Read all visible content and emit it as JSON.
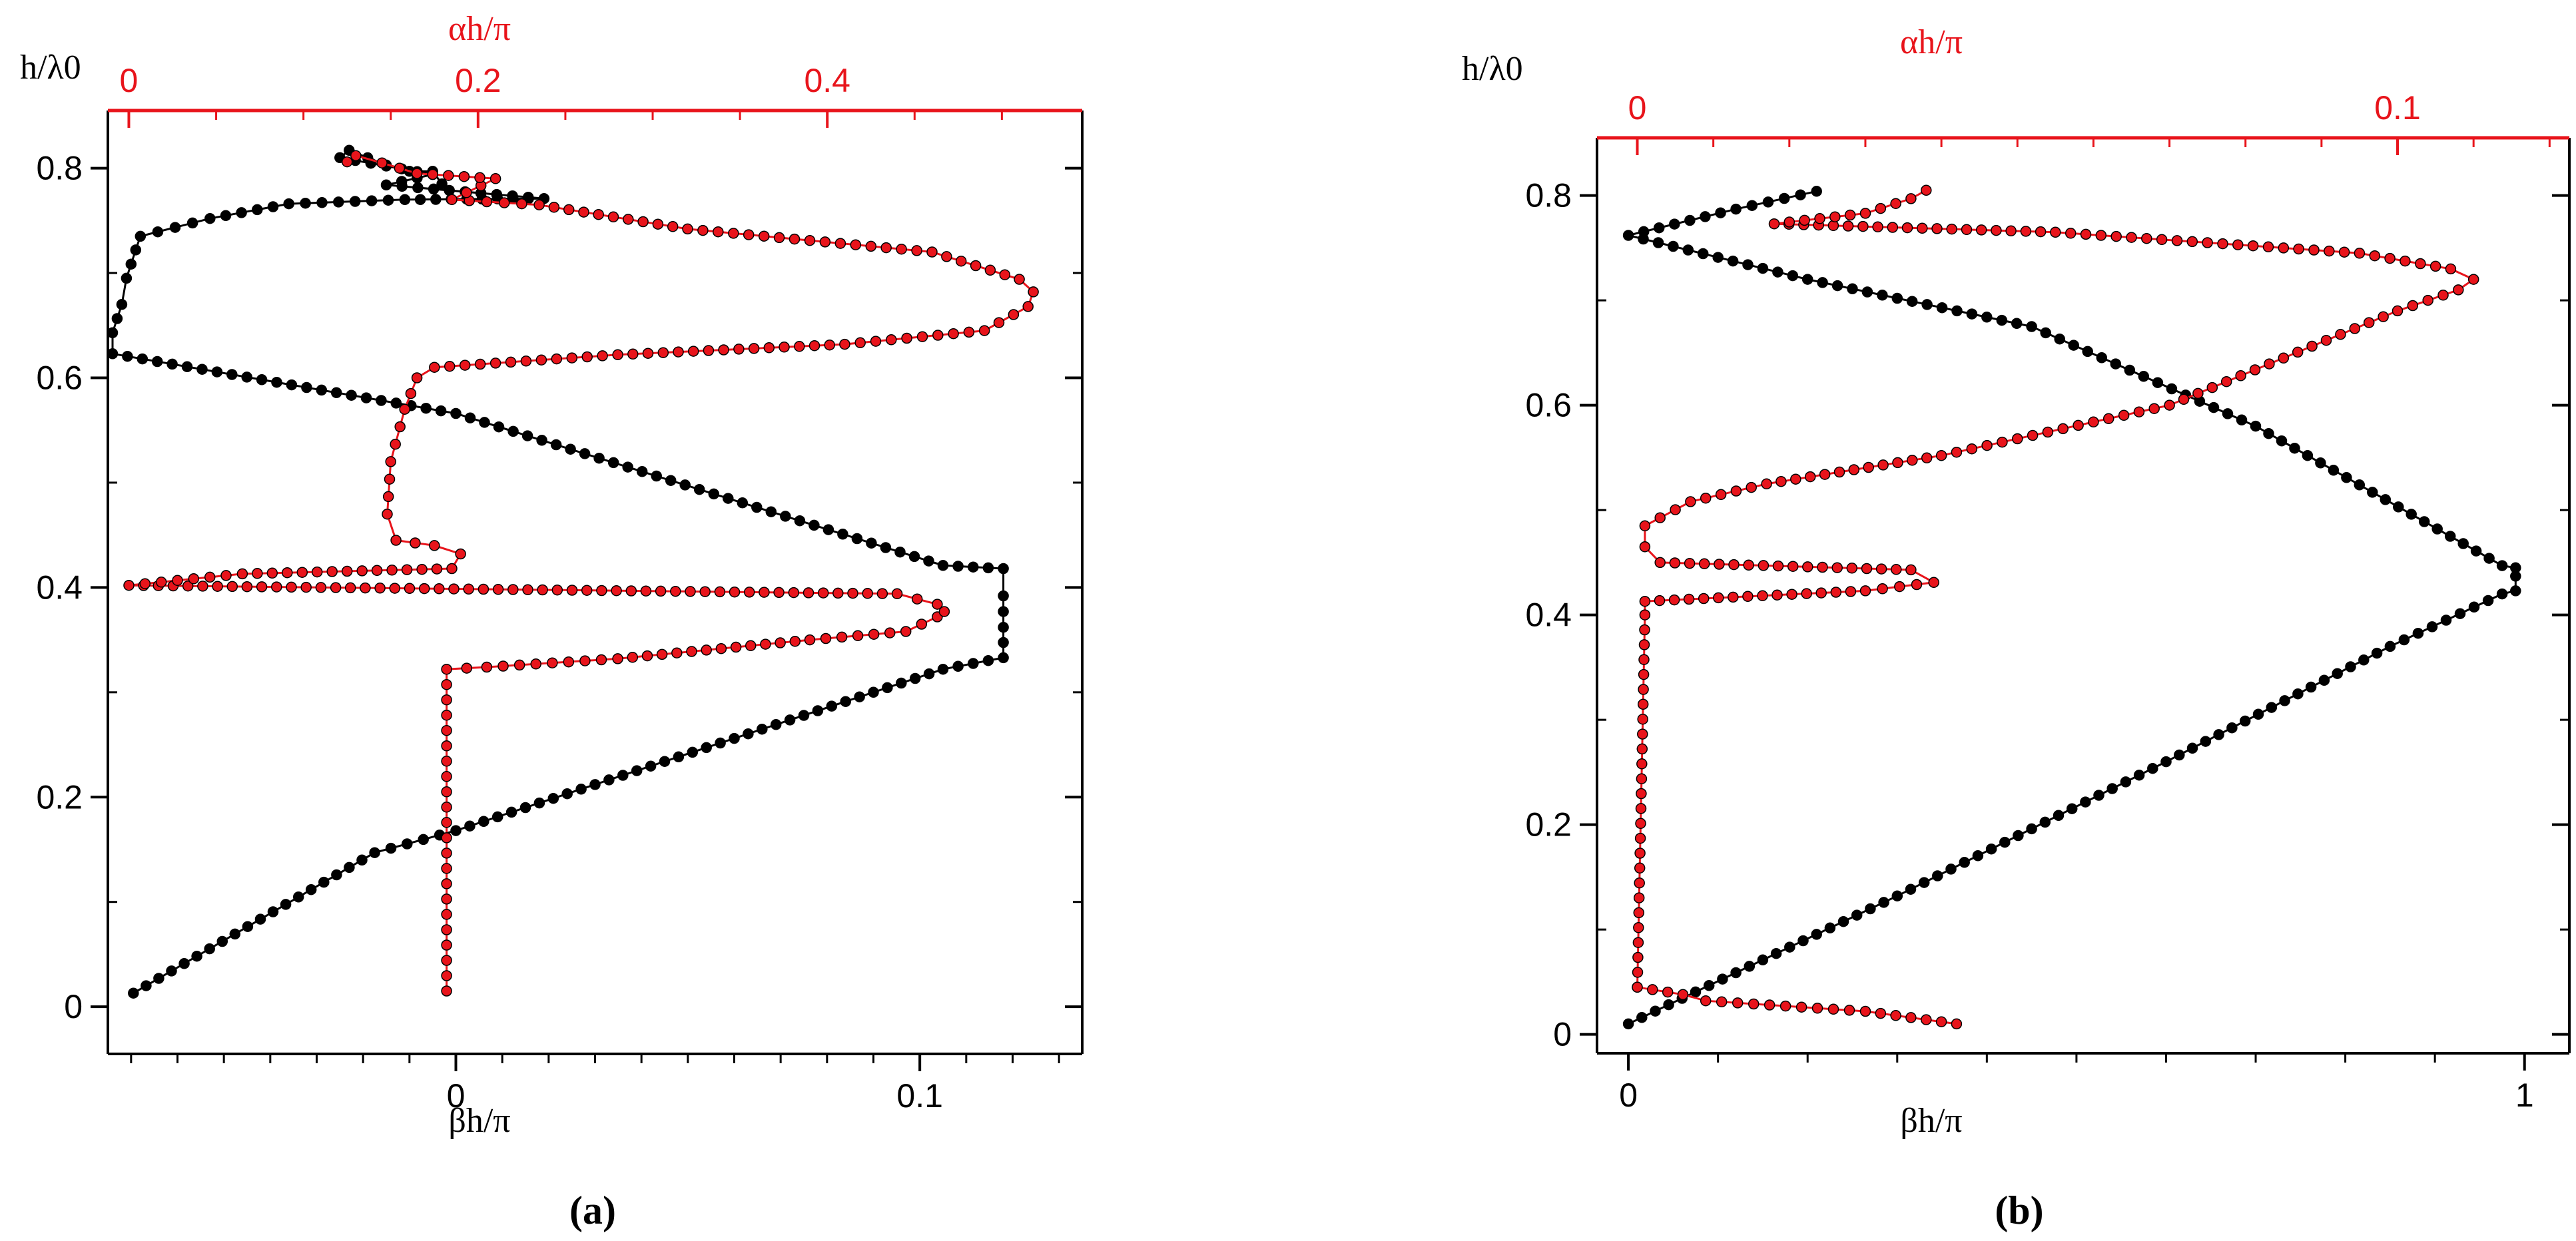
{
  "colors": {
    "primary": "#000000",
    "secondary": "#e8141b"
  },
  "chart_data": [
    {
      "type": "line",
      "panel_label": "(a)",
      "ylabel": "h/λ0",
      "xlabel": "βh/π",
      "x2label": "αh/π",
      "xlim": [
        -0.075,
        0.135
      ],
      "x2lim": [
        -0.012,
        0.546
      ],
      "ylim": [
        -0.045,
        0.855
      ],
      "x_ticks": [
        0,
        0.1
      ],
      "x_tick_labels": [
        "0",
        "0.1"
      ],
      "x_minor_ticks": [
        -0.07,
        -0.06,
        -0.05,
        -0.04,
        -0.03,
        -0.02,
        -0.01,
        0.01,
        0.02,
        0.03,
        0.04,
        0.05,
        0.06,
        0.07,
        0.08,
        0.09,
        0.11,
        0.12,
        0.13
      ],
      "x2_ticks": [
        0,
        0.2,
        0.4
      ],
      "x2_tick_labels": [
        "0",
        "0.2",
        "0.4"
      ],
      "x2_minor_ticks": [
        0.05,
        0.1,
        0.15,
        0.25,
        0.3,
        0.35,
        0.45,
        0.5
      ],
      "y_ticks": [
        0,
        0.2,
        0.4,
        0.6,
        0.8
      ],
      "y_tick_labels": [
        "0",
        "0.2",
        "0.4",
        "0.6",
        "0.8"
      ],
      "y_minor_ticks": [
        0.1,
        0.3,
        0.5,
        0.7
      ],
      "series": [
        {
          "axis": "bottom",
          "points": [
            [
              -0.0695,
              0.013
            ],
            [
              -0.0175,
              0.147
            ],
            [
              0.0,
              0.168
            ],
            [
              0.105,
              0.322
            ],
            [
              0.118,
              0.333
            ],
            [
              0.118,
              0.362
            ],
            [
              0.118,
              0.392
            ],
            [
              0.118,
              0.418
            ],
            [
              0.105,
              0.421
            ],
            [
              0.0,
              0.566
            ],
            [
              -0.074,
              0.623
            ],
            [
              -0.074,
              0.643
            ],
            [
              -0.072,
              0.67
            ],
            [
              -0.071,
              0.695
            ],
            [
              -0.069,
              0.722
            ],
            [
              -0.068,
              0.735
            ],
            [
              -0.053,
              0.752
            ],
            [
              -0.036,
              0.766
            ],
            [
              -0.011,
              0.77
            ],
            [
              0.019,
              0.771
            ],
            [
              -0.015,
              0.784
            ],
            [
              -0.005,
              0.794
            ],
            [
              -0.025,
              0.81
            ],
            [
              -0.023,
              0.817
            ],
            [
              -0.015,
              0.803
            ],
            [
              -0.01,
              0.797
            ],
            [
              -0.005,
              0.797
            ],
            [
              -0.003,
              0.785
            ]
          ]
        },
        {
          "axis": "top",
          "points": [
            [
              0.182,
              0.015
            ],
            [
              0.182,
              0.322
            ],
            [
              0.205,
              0.324
            ],
            [
              0.28,
              0.332
            ],
            [
              0.39,
              0.35
            ],
            [
              0.445,
              0.358
            ],
            [
              0.463,
              0.372
            ],
            [
              0.467,
              0.377
            ],
            [
              0.463,
              0.384
            ],
            [
              0.44,
              0.394
            ],
            [
              0.0,
              0.402
            ],
            [
              0.065,
              0.413
            ],
            [
              0.185,
              0.418
            ],
            [
              0.19,
              0.432
            ],
            [
              0.175,
              0.44
            ],
            [
              0.153,
              0.445
            ],
            [
              0.148,
              0.47
            ],
            [
              0.15,
              0.52
            ],
            [
              0.158,
              0.57
            ],
            [
              0.165,
              0.6
            ],
            [
              0.175,
              0.61
            ],
            [
              0.28,
              0.622
            ],
            [
              0.41,
              0.632
            ],
            [
              0.49,
              0.645
            ],
            [
              0.515,
              0.668
            ],
            [
              0.518,
              0.682
            ],
            [
              0.51,
              0.694
            ],
            [
              0.46,
              0.72
            ],
            [
              0.32,
              0.742
            ],
            [
              0.235,
              0.765
            ],
            [
              0.185,
              0.77
            ],
            [
              0.21,
              0.79
            ],
            [
              0.165,
              0.795
            ],
            [
              0.145,
              0.805
            ],
            [
              0.13,
              0.812
            ],
            [
              0.125,
              0.806
            ]
          ]
        }
      ]
    },
    {
      "type": "line",
      "panel_label": "(b)",
      "ylabel": "h/λ0",
      "xlabel": "βh/π",
      "x2label": "αh/π",
      "xlim": [
        -0.035,
        1.05
      ],
      "x2lim": [
        -0.0053,
        0.1226
      ],
      "ylim": [
        -0.018,
        0.855
      ],
      "x_ticks": [
        0,
        1
      ],
      "x_tick_labels": [
        "0",
        "1"
      ],
      "x_minor_ticks": [
        0.1,
        0.2,
        0.3,
        0.4,
        0.5,
        0.6,
        0.7,
        0.8,
        0.9
      ],
      "x2_ticks": [
        0,
        0.1
      ],
      "x2_tick_labels": [
        "0",
        "0.1"
      ],
      "x2_minor_ticks": [
        0.01,
        0.02,
        0.03,
        0.04,
        0.05,
        0.06,
        0.07,
        0.08,
        0.09,
        0.11,
        0.12
      ],
      "y_ticks": [
        0,
        0.2,
        0.4,
        0.6,
        0.8
      ],
      "y_tick_labels": [
        "0",
        "0.2",
        "0.4",
        "0.6",
        "0.8"
      ],
      "y_minor_ticks": [
        0.1,
        0.3,
        0.5,
        0.7
      ],
      "series": [
        {
          "axis": "bottom",
          "points": [
            [
              0.0,
              0.01
            ],
            [
              0.3,
              0.132
            ],
            [
              0.6,
              0.26
            ],
            [
              0.85,
              0.37
            ],
            [
              0.975,
              0.42
            ],
            [
              0.99,
              0.423
            ],
            [
              0.99,
              0.437
            ],
            [
              0.99,
              0.445
            ],
            [
              0.975,
              0.447
            ],
            [
              0.7,
              0.58
            ],
            [
              0.45,
              0.675
            ],
            [
              0.2,
              0.72
            ],
            [
              0.0,
              0.762
            ],
            [
              0.12,
              0.787
            ],
            [
              0.21,
              0.804
            ]
          ]
        },
        {
          "axis": "top",
          "points": [
            [
              0.0,
              0.045
            ],
            [
              0.001,
              0.4
            ],
            [
              0.001,
              0.413
            ],
            [
              0.03,
              0.423
            ],
            [
              0.039,
              0.431
            ],
            [
              0.036,
              0.443
            ],
            [
              0.003,
              0.45
            ],
            [
              0.001,
              0.465
            ],
            [
              0.001,
              0.485
            ],
            [
              0.007,
              0.508
            ],
            [
              0.017,
              0.525
            ],
            [
              0.04,
              0.552
            ],
            [
              0.07,
              0.6
            ],
            [
              0.1,
              0.69
            ],
            [
              0.108,
              0.71
            ],
            [
              0.11,
              0.72
            ],
            [
              0.107,
              0.73
            ],
            [
              0.095,
              0.745
            ],
            [
              0.055,
              0.765
            ],
            [
              0.018,
              0.773
            ],
            [
              0.03,
              0.783
            ],
            [
              0.036,
              0.797
            ],
            [
              0.038,
              0.805
            ]
          ]
        },
        {
          "axis": "top",
          "points": [
            [
              0.0,
              0.045
            ],
            [
              0.006,
              0.038
            ],
            [
              0.009,
              0.032
            ],
            [
              0.03,
              0.022
            ],
            [
              0.042,
              0.01
            ]
          ]
        }
      ]
    }
  ]
}
